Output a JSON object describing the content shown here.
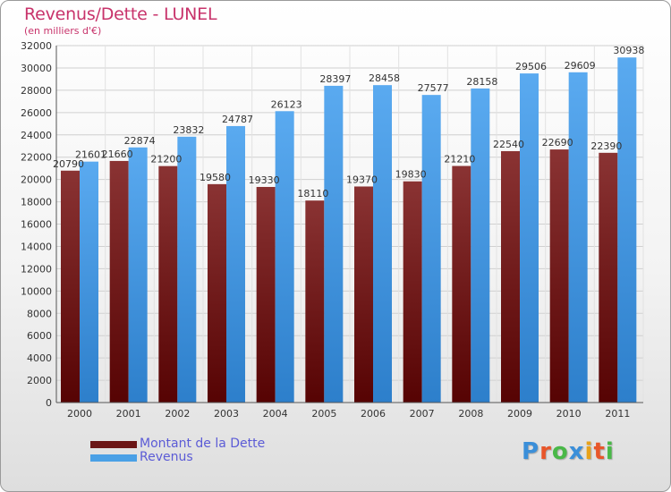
{
  "title": "Revenus/Dette - LUNEL",
  "subtitle": "(en milliers d'€)",
  "logo": {
    "text": "Proxiti",
    "colors": [
      "#3b8fd9",
      "#e8562a",
      "#49b848",
      "#3b8fd9",
      "#e8a21a",
      "#e8562a",
      "#49b848"
    ]
  },
  "legend": [
    {
      "label": "Montant de la Dette",
      "color": "#6b1515"
    },
    {
      "label": "Revenus",
      "color": "#4aa0e6"
    }
  ],
  "chart_data": {
    "type": "bar",
    "categories": [
      "2000",
      "2001",
      "2002",
      "2003",
      "2004",
      "2005",
      "2006",
      "2007",
      "2008",
      "2009",
      "2010",
      "2011"
    ],
    "series": [
      {
        "name": "Montant de la Dette",
        "color": "#6b1515",
        "values": [
          20790,
          21660,
          21200,
          19580,
          19330,
          18110,
          19370,
          19830,
          21210,
          22540,
          22690,
          22390
        ],
        "labels": [
          "20790",
          "21660",
          "21200",
          "19580",
          "19330",
          "18110",
          "19370",
          "19830",
          "21210",
          "22540",
          "22690",
          "22390"
        ]
      },
      {
        "name": "Revenus",
        "color": "#4aa0e6",
        "values": [
          21601,
          22874,
          23832,
          24787,
          26123,
          28397,
          28458,
          27577,
          28158,
          29506,
          29609,
          30938
        ],
        "labels": [
          "21601",
          "22874",
          "23832",
          "24787",
          "26123",
          "28397",
          "28458",
          "27577",
          "28158",
          "29506",
          "29609",
          "30938"
        ]
      }
    ],
    "yticks": [
      "0",
      "2000",
      "4000",
      "6000",
      "8000",
      "10000",
      "12000",
      "14000",
      "16000",
      "18000",
      "20000",
      "22000",
      "24000",
      "26000",
      "28000",
      "30000",
      "32000"
    ],
    "ylim": [
      0,
      32000
    ],
    "grid": true,
    "legend_position": "bottom-left"
  }
}
